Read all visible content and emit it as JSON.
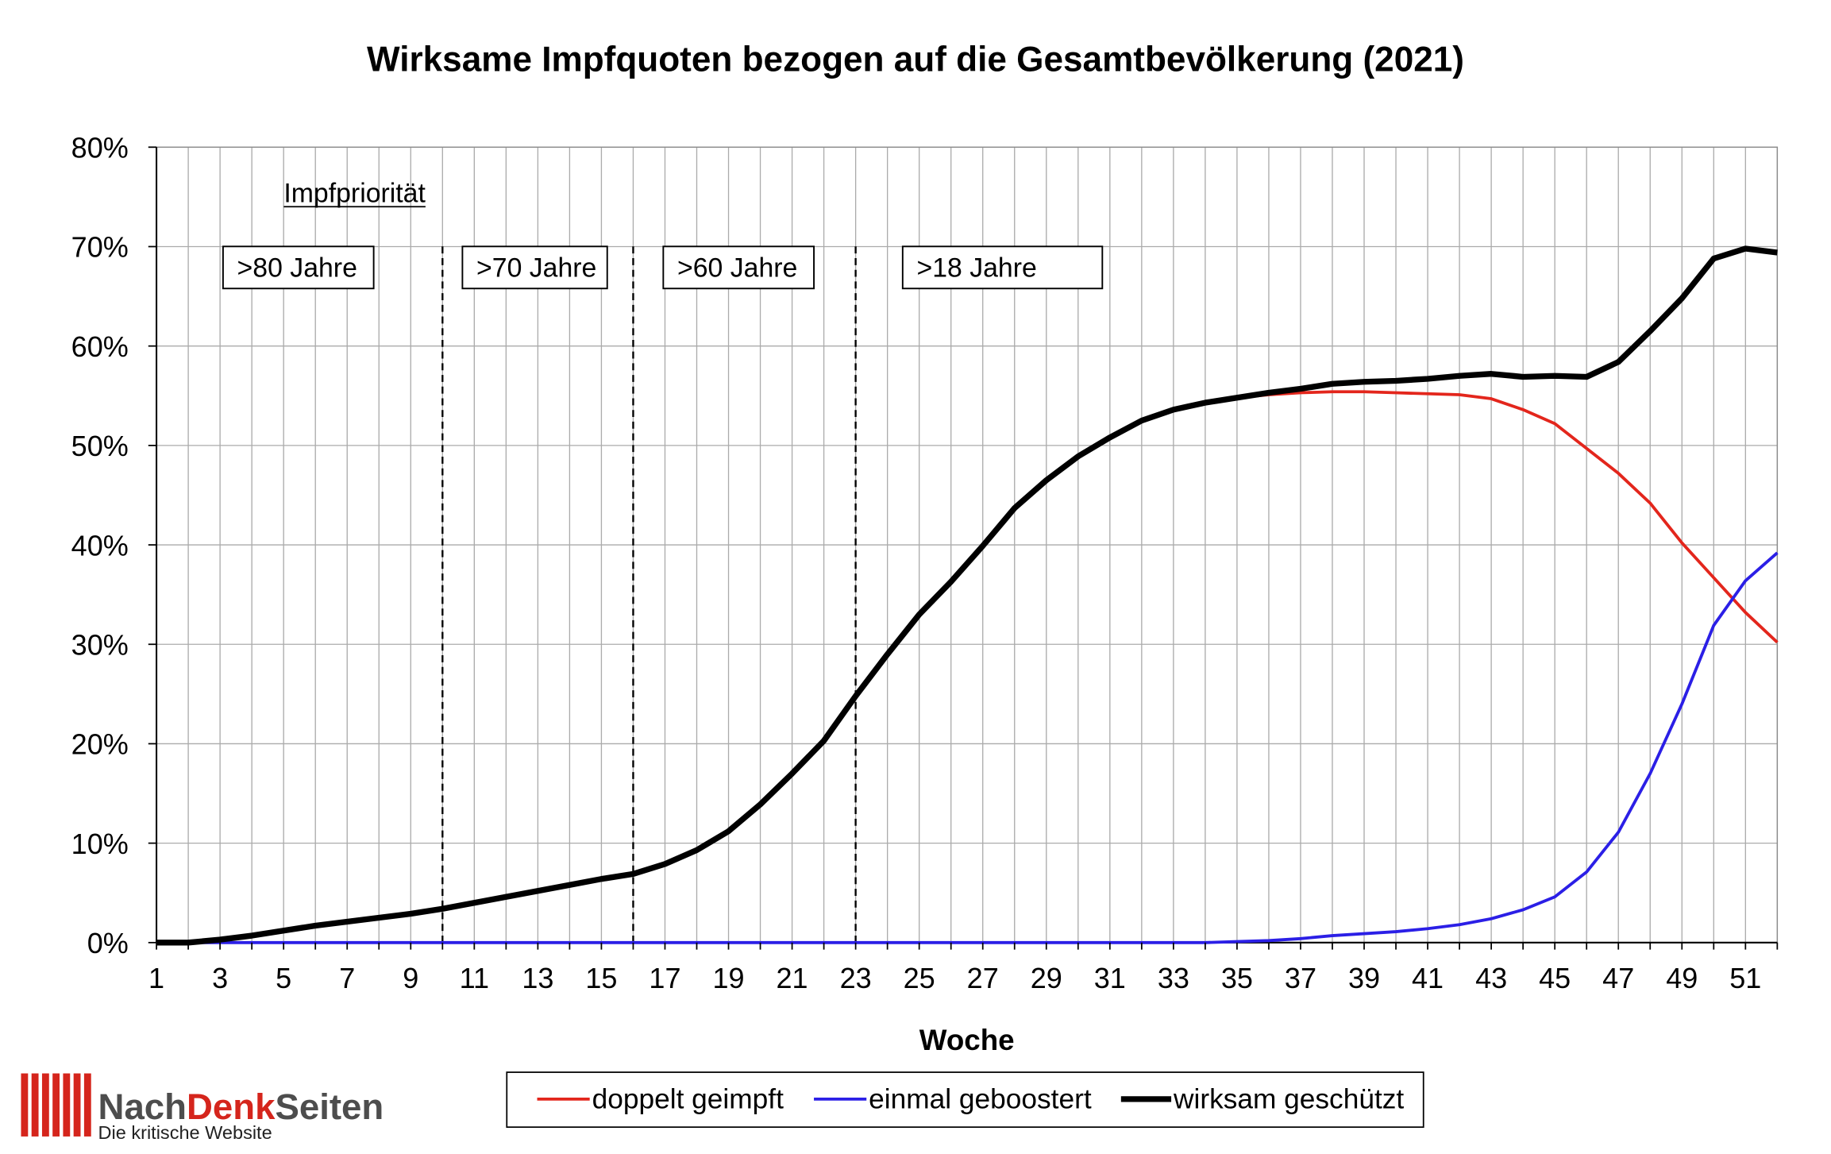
{
  "chart_data": {
    "type": "line",
    "title": "Wirksame Impfquoten bezogen auf die Gesamtbevölkerung (2021)",
    "xlabel": "Woche",
    "x": [
      1,
      2,
      3,
      4,
      5,
      6,
      7,
      8,
      9,
      10,
      11,
      12,
      13,
      14,
      15,
      16,
      17,
      18,
      19,
      20,
      21,
      22,
      23,
      24,
      25,
      26,
      27,
      28,
      29,
      30,
      31,
      32,
      33,
      34,
      35,
      36,
      37,
      38,
      39,
      40,
      41,
      42,
      43,
      44,
      45,
      46,
      47,
      48,
      49,
      50,
      51,
      52
    ],
    "xlim": [
      1,
      52
    ],
    "x_tick_labels": [
      "1",
      "3",
      "5",
      "7",
      "9",
      "11",
      "13",
      "15",
      "17",
      "19",
      "21",
      "23",
      "25",
      "27",
      "29",
      "31",
      "33",
      "35",
      "37",
      "39",
      "41",
      "43",
      "45",
      "47",
      "49",
      "51"
    ],
    "ylim": [
      0,
      80
    ],
    "y_tick_labels": [
      "0%",
      "10%",
      "20%",
      "30%",
      "40%",
      "50%",
      "60%",
      "70%",
      "80%"
    ],
    "grid": true,
    "legend_position": "bottom",
    "series": [
      {
        "name": "doppelt geimpft",
        "color": "#e3261c",
        "values": [
          0,
          0,
          0.3,
          0.7,
          1.2,
          1.7,
          2.1,
          2.5,
          2.9,
          3.4,
          4.0,
          4.6,
          5.2,
          5.8,
          6.4,
          6.9,
          7.9,
          9.3,
          11.2,
          13.9,
          17.0,
          20.3,
          24.8,
          29.0,
          33.0,
          36.3,
          39.9,
          43.7,
          46.5,
          48.9,
          50.8,
          52.5,
          53.6,
          54.3,
          54.8,
          55.1,
          55.3,
          55.4,
          55.4,
          55.3,
          55.2,
          55.1,
          54.7,
          53.6,
          52.2,
          49.7,
          47.2,
          44.2,
          40.2,
          36.7,
          33.2,
          30.2
        ]
      },
      {
        "name": "einmal geboostert",
        "color": "#2b1fe6",
        "values": [
          0,
          0,
          0,
          0,
          0,
          0,
          0,
          0,
          0,
          0,
          0,
          0,
          0,
          0,
          0,
          0,
          0,
          0,
          0,
          0,
          0,
          0,
          0,
          0,
          0,
          0,
          0,
          0,
          0,
          0,
          0,
          0,
          0,
          0,
          0.1,
          0.2,
          0.4,
          0.7,
          0.9,
          1.1,
          1.4,
          1.8,
          2.4,
          3.3,
          4.6,
          7.1,
          11.1,
          17.0,
          24.0,
          31.9,
          36.4,
          39.2
        ]
      },
      {
        "name": "wirksam geschützt",
        "color": "#000000",
        "values": [
          0,
          0,
          0.3,
          0.7,
          1.2,
          1.7,
          2.1,
          2.5,
          2.9,
          3.4,
          4.0,
          4.6,
          5.2,
          5.8,
          6.4,
          6.9,
          7.9,
          9.3,
          11.2,
          13.9,
          17.0,
          20.3,
          24.8,
          29.0,
          33.0,
          36.3,
          39.9,
          43.7,
          46.5,
          48.9,
          50.8,
          52.5,
          53.6,
          54.3,
          54.8,
          55.3,
          55.7,
          56.2,
          56.4,
          56.5,
          56.7,
          57.0,
          57.2,
          56.9,
          57.0,
          56.9,
          58.4,
          61.5,
          64.8,
          68.8,
          69.8,
          69.4
        ]
      }
    ],
    "annotations": {
      "heading": "Impfpriorität",
      "phases": [
        {
          "label": ">80 Jahre"
        },
        {
          "label": ">70 Jahre"
        },
        {
          "label": ">60 Jahre"
        },
        {
          "label": ">18 Jahre"
        }
      ],
      "phase_boundaries": [
        10,
        16,
        23
      ]
    }
  },
  "logo": {
    "name_parts": [
      "Nach",
      "Denk",
      "Seiten"
    ],
    "tagline": "Die kritische Website",
    "brand_color": "#d5251c",
    "text_color": "#4d4d4d"
  }
}
